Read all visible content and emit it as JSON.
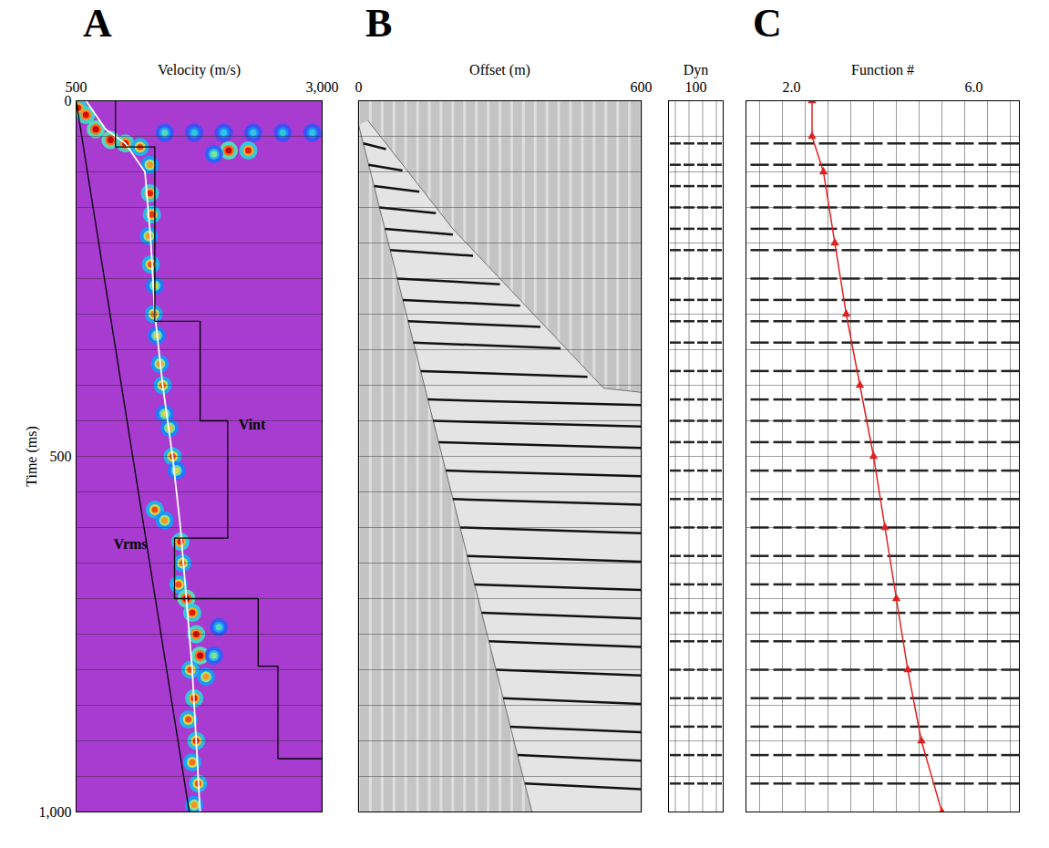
{
  "chart_data": [
    {
      "type": "heatmap",
      "panel": "A",
      "xlabel": "Velocity (m/s)",
      "ylabel": "Time (ms)",
      "xlim": [
        500,
        3000
      ],
      "xticks": [
        500,
        3000
      ],
      "ylim": [
        0,
        1000
      ],
      "yticks": [
        0,
        500,
        1000
      ],
      "color_range": [
        0,
        1
      ],
      "semblance": [
        [
          520,
          10,
          0.9
        ],
        [
          600,
          20,
          0.95
        ],
        [
          700,
          40,
          1
        ],
        [
          850,
          55,
          1
        ],
        [
          1000,
          60,
          0.95
        ],
        [
          1150,
          65,
          0.8
        ],
        [
          1250,
          90,
          0.7
        ],
        [
          1400,
          45,
          0.45
        ],
        [
          1700,
          45,
          0.4
        ],
        [
          2000,
          45,
          0.4
        ],
        [
          2300,
          45,
          0.4
        ],
        [
          2600,
          45,
          0.4
        ],
        [
          2900,
          45,
          0.4
        ],
        [
          2050,
          70,
          1
        ],
        [
          2250,
          70,
          0.9
        ],
        [
          1900,
          75,
          0.5
        ],
        [
          1250,
          130,
          0.9
        ],
        [
          1270,
          160,
          0.85
        ],
        [
          1240,
          190,
          0.7
        ],
        [
          1260,
          230,
          0.8
        ],
        [
          1300,
          260,
          0.6
        ],
        [
          1290,
          300,
          0.75
        ],
        [
          1320,
          330,
          0.6
        ],
        [
          1350,
          370,
          0.7
        ],
        [
          1380,
          400,
          0.75
        ],
        [
          1400,
          440,
          0.6
        ],
        [
          1450,
          460,
          0.65
        ],
        [
          1480,
          500,
          0.8
        ],
        [
          1520,
          520,
          0.6
        ],
        [
          1300,
          575,
          0.8
        ],
        [
          1400,
          590,
          0.7
        ],
        [
          1560,
          620,
          0.9
        ],
        [
          1580,
          650,
          0.75
        ],
        [
          1540,
          680,
          0.8
        ],
        [
          1620,
          700,
          1
        ],
        [
          1680,
          720,
          0.9
        ],
        [
          1720,
          750,
          0.95
        ],
        [
          1760,
          780,
          1
        ],
        [
          1660,
          800,
          0.8
        ],
        [
          1820,
          810,
          0.7
        ],
        [
          1700,
          840,
          0.9
        ],
        [
          1640,
          870,
          0.8
        ],
        [
          1720,
          900,
          0.85
        ],
        [
          1680,
          930,
          0.75
        ],
        [
          1740,
          960,
          0.8
        ],
        [
          1700,
          990,
          0.7
        ],
        [
          1900,
          780,
          0.5
        ],
        [
          1950,
          740,
          0.45
        ]
      ],
      "series": [
        {
          "name": "Vrms",
          "color": "#ffffff",
          "x": [
            600,
            800,
            1000,
            1200,
            1260,
            1300,
            1380,
            1480,
            1560,
            1620,
            1680,
            1720,
            1760
          ],
          "values": [
            0,
            40,
            60,
            100,
            200,
            300,
            400,
            500,
            600,
            700,
            800,
            900,
            1000
          ]
        },
        {
          "name": "Vint",
          "color": "#000000",
          "x": [
            900,
            900,
            1300,
            1300,
            1760,
            1760,
            2040,
            2040,
            1500,
            1500,
            2350,
            2350,
            2550,
            2550,
            3000,
            3000
          ],
          "values": [
            0,
            65,
            65,
            310,
            310,
            450,
            450,
            615,
            615,
            700,
            700,
            795,
            795,
            925,
            925,
            1000
          ]
        },
        {
          "color": "#000000",
          "x": [
            500,
            1650
          ],
          "values": [
            0,
            1000
          ]
        }
      ],
      "annotations": [
        {
          "text": "Vint",
          "x": 2150,
          "y": 455
        },
        {
          "text": "Vrms",
          "x": 880,
          "y": 623
        }
      ],
      "timing_lines": [
        50,
        100,
        150,
        200,
        250,
        300,
        350,
        400,
        450,
        500,
        550,
        600,
        650,
        700,
        750,
        800,
        850,
        900,
        950
      ]
    },
    {
      "type": "wiggle",
      "panel": "B",
      "xlabel": "Offset (m)",
      "xlim": [
        0,
        600
      ],
      "xticks": [
        0,
        600
      ],
      "ylim": [
        0,
        1000
      ],
      "tick_labels": "x",
      "trace_offsets": [
        0,
        25,
        50,
        75,
        100,
        125,
        150,
        175,
        200,
        225,
        250,
        275,
        300,
        325,
        350,
        375,
        400,
        425,
        450,
        475,
        500,
        525,
        550,
        575,
        600
      ],
      "data_region": {
        "offset": [
          20,
          200,
          400,
          520,
          600,
          600,
          368,
          0
        ],
        "time": [
          28,
          180,
          320,
          404,
          410,
          1000,
          1000,
          34
        ]
      },
      "events": {
        "offset_start": [
          10,
          21,
          33,
          44,
          56,
          67,
          82,
          94,
          105,
          116,
          132,
          147,
          158,
          170,
          185,
          200,
          216,
          231,
          246,
          261,
          277,
          292,
          307,
          322,
          338,
          353
        ],
        "offset_end": [
          58,
          93,
          129,
          164,
          200,
          243,
          300,
          343,
          386,
          429,
          486,
          600,
          600,
          600,
          600,
          600,
          600,
          600,
          600,
          600,
          600,
          600,
          600,
          600,
          600,
          600
        ],
        "time_start": [
          60,
          90,
          120,
          150,
          180,
          210,
          250,
          280,
          310,
          340,
          380,
          420,
          450,
          480,
          520,
          560,
          600,
          640,
          680,
          720,
          760,
          800,
          840,
          880,
          920,
          960
        ],
        "time_end": [
          68,
          98,
          128,
          158,
          188,
          218,
          258,
          288,
          318,
          348,
          388,
          428,
          458,
          488,
          528,
          568,
          608,
          648,
          688,
          728,
          768,
          808,
          848,
          888,
          928,
          968
        ]
      }
    },
    {
      "type": "wiggle",
      "xlabel": "Dyn",
      "xlim": [
        0,
        200
      ],
      "xticks": [
        100
      ],
      "ylim": [
        0,
        1000
      ],
      "tick_labels": "x",
      "trace_positions": [
        25,
        75,
        125,
        175
      ],
      "event_times": [
        60,
        90,
        120,
        150,
        180,
        210,
        250,
        280,
        310,
        340,
        380,
        420,
        450,
        480,
        520,
        560,
        600,
        640,
        680,
        720,
        760,
        800,
        840,
        880,
        920,
        960
      ]
    },
    {
      "type": "wiggle",
      "panel": "C",
      "xlabel": "Function #",
      "xlim": [
        1,
        7
      ],
      "xticks": [
        2,
        6
      ],
      "ylim": [
        0,
        1000
      ],
      "tick_labels": "x",
      "trace_positions": [
        1.3,
        1.8,
        2.3,
        2.8,
        3.3,
        3.8,
        4.3,
        4.8,
        5.3,
        5.8,
        6.3,
        6.8
      ],
      "event_times": [
        60,
        90,
        120,
        150,
        180,
        210,
        250,
        280,
        310,
        340,
        380,
        420,
        450,
        480,
        520,
        560,
        600,
        640,
        680,
        720,
        760,
        800,
        840,
        880,
        920,
        960
      ],
      "series": [
        {
          "color": "#e02020",
          "marker": "triangle",
          "x": [
            2.45,
            2.45,
            2.7,
            2.95,
            3.2,
            3.5,
            3.8,
            4.05,
            4.3,
            4.55,
            4.85,
            5.3
          ],
          "values": [
            0,
            50,
            100,
            200,
            300,
            400,
            500,
            600,
            700,
            800,
            900,
            1000
          ]
        }
      ]
    }
  ]
}
